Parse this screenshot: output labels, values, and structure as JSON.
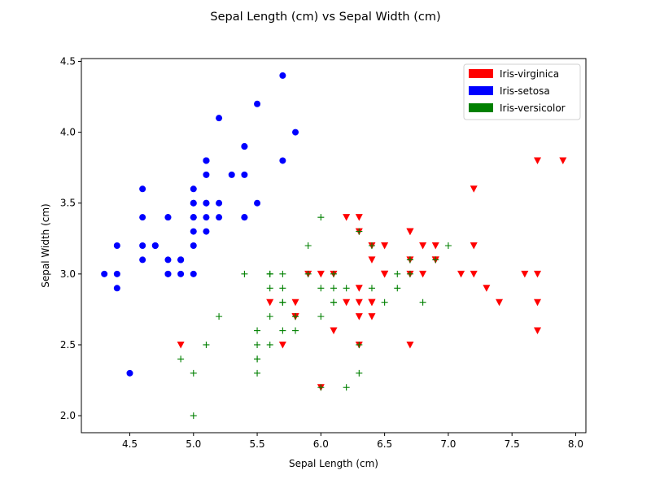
{
  "chart_data": {
    "type": "scatter",
    "title": "Sepal Length (cm) vs Sepal Width (cm)",
    "xlabel": "Sepal Length (cm)",
    "ylabel": "Sepal Width (cm)",
    "xlim": [
      4.12,
      8.08
    ],
    "ylim": [
      1.88,
      4.52
    ],
    "xticks": [
      "4.5",
      "5.0",
      "5.5",
      "6.0",
      "6.5",
      "7.0",
      "7.5",
      "8.0"
    ],
    "yticks": [
      "2.0",
      "2.5",
      "3.0",
      "3.5",
      "4.0",
      "4.5"
    ],
    "legend_position": "top-right",
    "grid": false,
    "series": [
      {
        "name": "Iris-virginica",
        "color": "#ff0000",
        "marker": "triangle-down",
        "points": [
          [
            6.3,
            3.3
          ],
          [
            5.8,
            2.7
          ],
          [
            7.1,
            3.0
          ],
          [
            6.3,
            2.9
          ],
          [
            6.5,
            3.0
          ],
          [
            7.6,
            3.0
          ],
          [
            4.9,
            2.5
          ],
          [
            7.3,
            2.9
          ],
          [
            6.7,
            2.5
          ],
          [
            7.2,
            3.6
          ],
          [
            6.5,
            3.2
          ],
          [
            6.4,
            2.7
          ],
          [
            6.8,
            3.0
          ],
          [
            5.7,
            2.5
          ],
          [
            5.8,
            2.8
          ],
          [
            6.4,
            3.2
          ],
          [
            6.5,
            3.0
          ],
          [
            7.7,
            3.8
          ],
          [
            7.7,
            2.6
          ],
          [
            6.0,
            2.2
          ],
          [
            6.9,
            3.2
          ],
          [
            5.6,
            2.8
          ],
          [
            7.7,
            2.8
          ],
          [
            6.3,
            2.7
          ],
          [
            6.7,
            3.3
          ],
          [
            7.2,
            3.2
          ],
          [
            6.2,
            2.8
          ],
          [
            6.1,
            3.0
          ],
          [
            6.4,
            2.8
          ],
          [
            7.2,
            3.0
          ],
          [
            7.4,
            2.8
          ],
          [
            7.9,
            3.8
          ],
          [
            6.4,
            2.8
          ],
          [
            6.3,
            2.8
          ],
          [
            6.1,
            2.6
          ],
          [
            7.7,
            3.0
          ],
          [
            6.3,
            3.4
          ],
          [
            6.4,
            3.1
          ],
          [
            6.0,
            3.0
          ],
          [
            6.9,
            3.1
          ],
          [
            6.7,
            3.1
          ],
          [
            6.9,
            3.1
          ],
          [
            5.8,
            2.7
          ],
          [
            6.8,
            3.2
          ],
          [
            6.7,
            3.3
          ],
          [
            6.7,
            3.0
          ],
          [
            6.3,
            2.5
          ],
          [
            6.5,
            3.0
          ],
          [
            6.2,
            3.4
          ],
          [
            5.9,
            3.0
          ]
        ]
      },
      {
        "name": "Iris-setosa",
        "color": "#0000ff",
        "marker": "circle",
        "points": [
          [
            5.1,
            3.5
          ],
          [
            4.9,
            3.0
          ],
          [
            4.7,
            3.2
          ],
          [
            4.6,
            3.1
          ],
          [
            5.0,
            3.6
          ],
          [
            5.4,
            3.9
          ],
          [
            4.6,
            3.4
          ],
          [
            5.0,
            3.4
          ],
          [
            4.4,
            2.9
          ],
          [
            4.9,
            3.1
          ],
          [
            5.4,
            3.7
          ],
          [
            4.8,
            3.4
          ],
          [
            4.8,
            3.0
          ],
          [
            4.3,
            3.0
          ],
          [
            5.8,
            4.0
          ],
          [
            5.7,
            4.4
          ],
          [
            5.4,
            3.9
          ],
          [
            5.1,
            3.5
          ],
          [
            5.7,
            3.8
          ],
          [
            5.1,
            3.8
          ],
          [
            5.4,
            3.4
          ],
          [
            5.1,
            3.7
          ],
          [
            4.6,
            3.6
          ],
          [
            5.1,
            3.3
          ],
          [
            4.8,
            3.4
          ],
          [
            5.0,
            3.0
          ],
          [
            5.0,
            3.4
          ],
          [
            5.2,
            3.5
          ],
          [
            5.2,
            3.4
          ],
          [
            4.7,
            3.2
          ],
          [
            4.8,
            3.1
          ],
          [
            5.4,
            3.4
          ],
          [
            5.2,
            4.1
          ],
          [
            5.5,
            4.2
          ],
          [
            4.9,
            3.1
          ],
          [
            5.0,
            3.2
          ],
          [
            5.5,
            3.5
          ],
          [
            4.9,
            3.1
          ],
          [
            4.4,
            3.0
          ],
          [
            5.1,
            3.4
          ],
          [
            5.0,
            3.5
          ],
          [
            4.5,
            2.3
          ],
          [
            4.4,
            3.2
          ],
          [
            5.0,
            3.5
          ],
          [
            5.1,
            3.8
          ],
          [
            4.8,
            3.0
          ],
          [
            5.1,
            3.8
          ],
          [
            4.6,
            3.2
          ],
          [
            5.3,
            3.7
          ],
          [
            5.0,
            3.3
          ]
        ]
      },
      {
        "name": "Iris-versicolor",
        "color": "#008000",
        "marker": "plus",
        "points": [
          [
            7.0,
            3.2
          ],
          [
            6.4,
            3.2
          ],
          [
            6.9,
            3.1
          ],
          [
            5.5,
            2.3
          ],
          [
            6.5,
            2.8
          ],
          [
            5.7,
            2.8
          ],
          [
            6.3,
            3.3
          ],
          [
            4.9,
            2.4
          ],
          [
            6.6,
            2.9
          ],
          [
            5.2,
            2.7
          ],
          [
            5.0,
            2.0
          ],
          [
            5.9,
            3.0
          ],
          [
            6.0,
            2.2
          ],
          [
            6.1,
            2.9
          ],
          [
            5.6,
            2.9
          ],
          [
            6.7,
            3.1
          ],
          [
            5.6,
            3.0
          ],
          [
            5.8,
            2.7
          ],
          [
            6.2,
            2.2
          ],
          [
            5.6,
            2.5
          ],
          [
            5.9,
            3.2
          ],
          [
            6.1,
            2.8
          ],
          [
            6.3,
            2.5
          ],
          [
            6.1,
            2.8
          ],
          [
            6.4,
            2.9
          ],
          [
            6.6,
            3.0
          ],
          [
            6.8,
            2.8
          ],
          [
            6.7,
            3.0
          ],
          [
            6.0,
            2.9
          ],
          [
            5.7,
            2.6
          ],
          [
            5.5,
            2.4
          ],
          [
            5.5,
            2.4
          ],
          [
            5.8,
            2.7
          ],
          [
            6.0,
            2.7
          ],
          [
            5.4,
            3.0
          ],
          [
            6.0,
            3.4
          ],
          [
            6.7,
            3.1
          ],
          [
            6.3,
            2.3
          ],
          [
            5.6,
            3.0
          ],
          [
            5.5,
            2.5
          ],
          [
            5.5,
            2.6
          ],
          [
            6.1,
            3.0
          ],
          [
            5.8,
            2.6
          ],
          [
            5.0,
            2.3
          ],
          [
            5.6,
            2.7
          ],
          [
            5.7,
            3.0
          ],
          [
            5.7,
            2.9
          ],
          [
            6.2,
            2.9
          ],
          [
            5.1,
            2.5
          ],
          [
            5.7,
            2.8
          ]
        ]
      }
    ]
  }
}
